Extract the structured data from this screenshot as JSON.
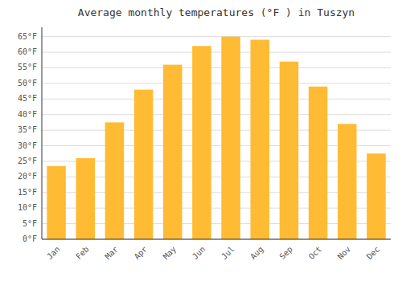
{
  "chart_data": {
    "type": "bar",
    "title": "Average monthly temperatures (°F ) in Tuszyn",
    "categories": [
      "Jan",
      "Feb",
      "Mar",
      "Apr",
      "May",
      "Jun",
      "Jul",
      "Aug",
      "Sep",
      "Oct",
      "Nov",
      "Dec"
    ],
    "values": [
      23.5,
      26.0,
      37.5,
      48.0,
      56.0,
      62.0,
      65.0,
      64.0,
      57.0,
      49.0,
      37.0,
      27.5
    ],
    "color": "#FFBB33",
    "ylim": [
      0,
      68
    ],
    "yticks": [
      {
        "value": 0,
        "label": "0°F"
      },
      {
        "value": 5,
        "label": "5°F"
      },
      {
        "value": 10,
        "label": "10°F"
      },
      {
        "value": 15,
        "label": "15°F"
      },
      {
        "value": 20,
        "label": "20°F"
      },
      {
        "value": 25,
        "label": "25°F"
      },
      {
        "value": 30,
        "label": "30°F"
      },
      {
        "value": 35,
        "label": "35°F"
      },
      {
        "value": 40,
        "label": "40°F"
      },
      {
        "value": 45,
        "label": "45°F"
      },
      {
        "value": 50,
        "label": "50°F"
      },
      {
        "value": 55,
        "label": "55°F"
      },
      {
        "value": 60,
        "label": "60°F"
      },
      {
        "value": 65,
        "label": "65°F"
      }
    ],
    "grid": true
  }
}
